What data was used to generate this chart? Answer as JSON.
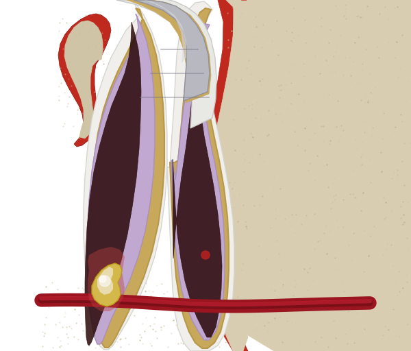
{
  "bg": "#ffffff",
  "bone_color": "#d8cdb0",
  "bone_color2": "#cfc4a5",
  "gum_red": "#c0291e",
  "gum_red2": "#a82218",
  "gum_dark": "#8b1510",
  "tooth_white": "#f0efec",
  "tooth_white2": "#e8e8e5",
  "dentin_color": "#c8a85a",
  "dentin_color2": "#b89848",
  "pulp_color": "#c0a8d0",
  "pulp_color2": "#a890c0",
  "canal_dark": "#2a0808",
  "filling_silver": "#b8b8c0",
  "filling_silver2": "#989898",
  "filling_highlight": "#d8d8e0",
  "abscess_gold": "#d4b84a",
  "abscess_highlight": "#f0e8c0",
  "nerve_red": "#9b1520",
  "nerve_dark": "#7a0f18",
  "nerve_bright": "#c02030"
}
